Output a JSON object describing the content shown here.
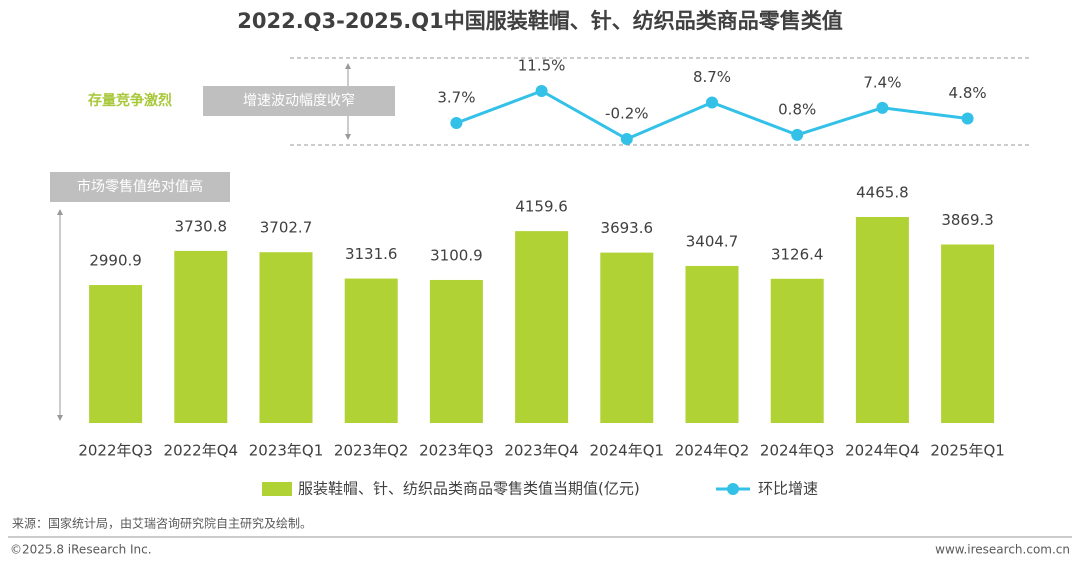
{
  "chart_data": {
    "type": "bar",
    "title": "2022.Q3-2025.Q1中国服装鞋帽、针、纺织品类商品零售类值",
    "annotations": [
      "存量竞争激烈",
      "增速波动幅度收窄",
      "市场零售值绝对值高"
    ],
    "categories": [
      "2022年Q3",
      "2022年Q4",
      "2023年Q1",
      "2023年Q2",
      "2023年Q3",
      "2023年Q4",
      "2024年Q1",
      "2024年Q2",
      "2024年Q3",
      "2024年Q4",
      "2025年Q1"
    ],
    "series": [
      {
        "name": "服装鞋帽、针、纺织品类商品零售类值当期值(亿元)",
        "type": "bar",
        "color": "#b1d235",
        "values": [
          2990.9,
          3730.8,
          3702.7,
          3131.6,
          3100.9,
          4159.6,
          3693.6,
          3404.7,
          3126.4,
          4465.8,
          3869.3
        ]
      },
      {
        "name": "环比增速",
        "type": "line",
        "color": "#33c1e8",
        "values": [
          null,
          null,
          null,
          null,
          3.7,
          11.5,
          -0.2,
          8.7,
          0.8,
          7.4,
          4.8
        ],
        "value_labels": [
          null,
          null,
          null,
          null,
          "3.7%",
          "11.5%",
          "-0.2%",
          "8.7%",
          "0.8%",
          "7.4%",
          "4.8%"
        ]
      }
    ]
  },
  "footer": {
    "source": "来源：国家统计局，由艾瑞咨询研究院自主研究及绘制。",
    "copyright": "©2025.8 iResearch Inc.",
    "website": "www.iresearch.com.cn"
  }
}
